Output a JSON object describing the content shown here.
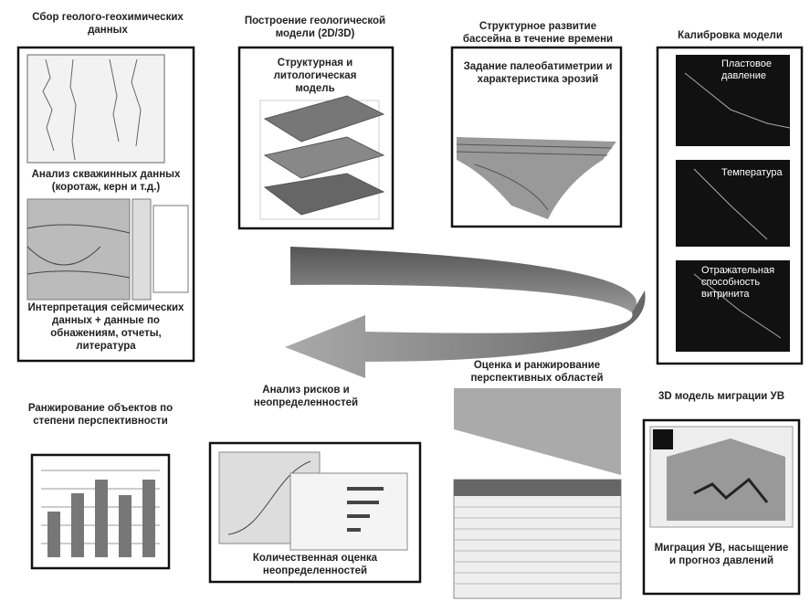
{
  "panels": [
    {
      "title": "Сбор геолого-геохимических данных",
      "captions": [
        "Анализ скважинных данных (коротаж, керн и т.д.)",
        "Интерпретация сейсмических данных + данные по обнажениям, отчеты, литература"
      ]
    },
    {
      "title": "Построение геологической модели (2D/3D)",
      "captions": [
        "Структурная и литологическая модель"
      ]
    },
    {
      "title": "Структурное развитие бассейна в течение времени",
      "captions": [
        "Задание палеобатиметрии и характеристика эрозий"
      ]
    },
    {
      "title": "Калибровка модели",
      "captions": [
        "Пластовое давление",
        "Температура",
        "Отражательная способность витринита"
      ]
    },
    {
      "title": "Ранжирование объектов по степени перспективности",
      "captions": []
    },
    {
      "title": "Анализ рисков и неопределенностей",
      "captions": [
        "Количественная оценка неопределенностей"
      ]
    },
    {
      "title": "Оценка и ранжирование перспективных областей",
      "captions": []
    },
    {
      "title": "3D модель миграции УВ",
      "captions": [
        "Миграция УВ, насыщение и прогноз давлений"
      ]
    }
  ]
}
